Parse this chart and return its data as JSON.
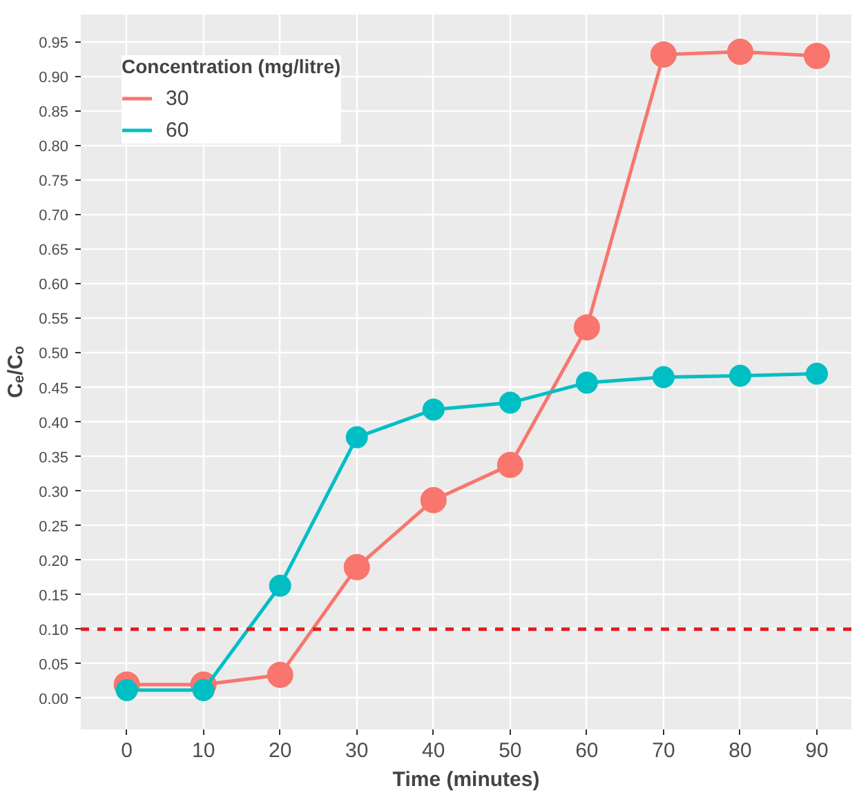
{
  "chart_data": {
    "type": "line",
    "xlabel": "Time (minutes)",
    "ylabel": "Cₑ/Cₒ",
    "legend_title": "Concentration (mg/litre)",
    "x": [
      0,
      10,
      20,
      30,
      40,
      50,
      60,
      70,
      80,
      90
    ],
    "series": [
      {
        "name": "30",
        "color": "#f8766d",
        "values": [
          0.02,
          0.02,
          0.034,
          0.19,
          0.287,
          0.338,
          0.537,
          0.932,
          0.936,
          0.93
        ]
      },
      {
        "name": "60",
        "color": "#00bfc4",
        "values": [
          0.012,
          0.012,
          0.163,
          0.378,
          0.418,
          0.428,
          0.457,
          0.465,
          0.467,
          0.47
        ]
      }
    ],
    "xlim": [
      -6,
      94.5
    ],
    "ylim": [
      -0.045,
      0.99
    ],
    "xticks": [
      0,
      10,
      20,
      30,
      40,
      50,
      60,
      70,
      80,
      90
    ],
    "yticks": [
      {
        "value": 0,
        "label": "0.00"
      },
      {
        "value": 0.05,
        "label": "0.05"
      },
      {
        "value": 0.1,
        "label": "0.10"
      },
      {
        "value": 0.15,
        "label": "0.15"
      },
      {
        "value": 0.2,
        "label": "0.20"
      },
      {
        "value": 0.25,
        "label": "0.25"
      },
      {
        "value": 0.3,
        "label": "0.30"
      },
      {
        "value": 0.35,
        "label": "0.35"
      },
      {
        "value": 0.4,
        "label": "0.40"
      },
      {
        "value": 0.45,
        "label": "0.45"
      },
      {
        "value": 0.5,
        "label": "0.50"
      },
      {
        "value": 0.55,
        "label": "0.55"
      },
      {
        "value": 0.6,
        "label": "0.60"
      },
      {
        "value": 0.65,
        "label": "0.65"
      },
      {
        "value": 0.7,
        "label": "0.70"
      },
      {
        "value": 0.75,
        "label": "0.75"
      },
      {
        "value": 0.8,
        "label": "0.80"
      },
      {
        "value": 0.85,
        "label": "0.85"
      },
      {
        "value": 0.9,
        "label": "0.90"
      },
      {
        "value": 0.95,
        "label": "0.95"
      }
    ],
    "ref_lines": [
      {
        "axis": "y",
        "value": 0.1,
        "color": "#e31a1c",
        "line_style": "dashed"
      }
    ],
    "grid": true,
    "legend": "top left",
    "marker": "circle",
    "line_style": "solid"
  }
}
